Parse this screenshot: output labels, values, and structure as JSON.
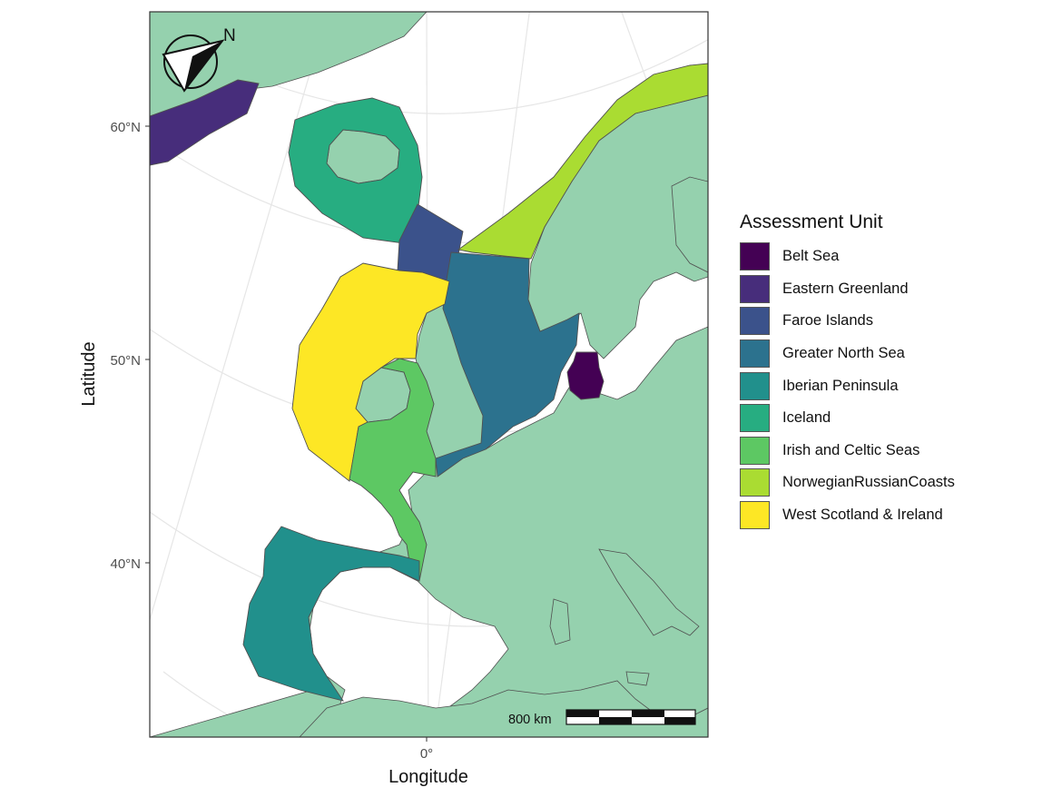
{
  "map": {
    "compass_label": "N",
    "scalebar_label": "800 km",
    "x_axis": {
      "title": "Longitude",
      "ticks": [
        "0°"
      ]
    },
    "y_axis": {
      "title": "Latitude",
      "ticks": [
        "60°N",
        "50°N",
        "40°N"
      ]
    },
    "colors": {
      "land": "#95d1ae",
      "sea": "#ffffff",
      "graticule": "#e6e6e6",
      "border": "#505050"
    }
  },
  "legend": {
    "title": "Assessment Unit",
    "items": [
      {
        "label": "Belt Sea",
        "color": "#440154"
      },
      {
        "label": "Eastern Greenland",
        "color": "#472d7b"
      },
      {
        "label": "Faroe Islands",
        "color": "#3b528b"
      },
      {
        "label": "Greater North Sea",
        "color": "#2c728e"
      },
      {
        "label": "Iberian Peninsula",
        "color": "#21908c"
      },
      {
        "label": "Iceland",
        "color": "#27ad81"
      },
      {
        "label": "Irish and Celtic Seas",
        "color": "#5dc863"
      },
      {
        "label": "NorwegianRussianCoasts",
        "color": "#aadc32"
      },
      {
        "label": "West Scotland & Ireland",
        "color": "#fde725"
      }
    ]
  }
}
